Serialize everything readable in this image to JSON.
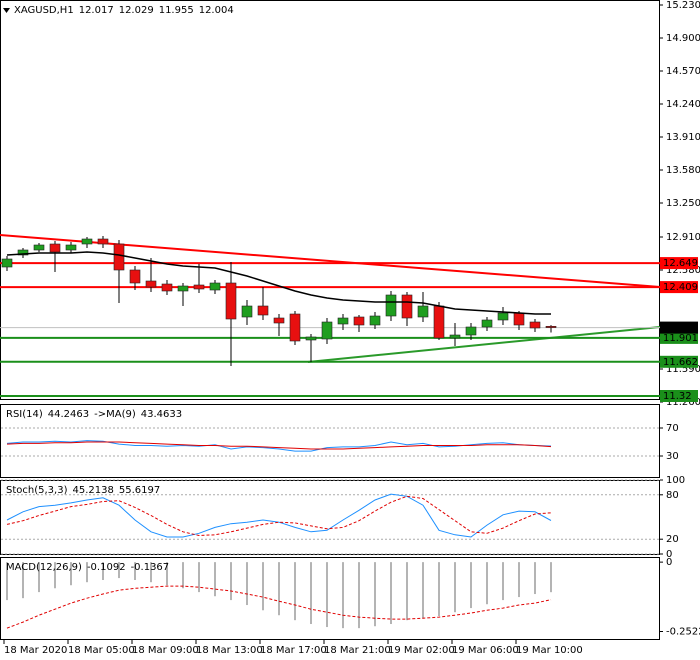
{
  "chart_data": [
    {
      "type": "candlestick",
      "title": "XAGUSD,H1",
      "categories": [
        "18 Mar 2020",
        null,
        null,
        null,
        "18 Mar 05:00",
        null,
        null,
        null,
        "18 Mar 09:00",
        null,
        null,
        null,
        "18 Mar 13:00",
        null,
        null,
        null,
        "18 Mar 17:00",
        null,
        null,
        null,
        "18 Mar 21:00",
        null,
        null,
        null,
        "19 Mar 02:00",
        null,
        null,
        null,
        "19 Mar 06:00",
        null,
        null,
        null,
        "19 Mar 10:00",
        null,
        null
      ],
      "open": [
        12.61,
        12.73,
        12.78,
        12.84,
        12.78,
        12.84,
        12.89,
        12.84,
        12.58,
        12.47,
        12.44,
        12.37,
        12.43,
        12.38,
        12.45,
        12.11,
        12.22,
        12.1,
        12.14,
        11.88,
        11.89,
        12.04,
        12.11,
        12.03,
        12.12,
        12.33,
        12.11,
        12.22,
        11.9,
        11.93,
        12.01,
        12.08,
        12.15,
        12.06,
        12.017
      ],
      "high": [
        12.72,
        12.8,
        12.85,
        12.87,
        12.86,
        12.91,
        12.92,
        12.88,
        12.62,
        12.7,
        12.48,
        12.45,
        12.64,
        12.48,
        12.66,
        12.28,
        12.41,
        12.14,
        12.17,
        11.94,
        12.1,
        12.14,
        12.13,
        12.16,
        12.37,
        12.36,
        12.36,
        12.26,
        12.05,
        12.05,
        12.11,
        12.21,
        12.17,
        12.09,
        12.029
      ],
      "low": [
        12.57,
        12.7,
        12.76,
        12.56,
        12.75,
        12.8,
        12.8,
        12.25,
        12.38,
        12.36,
        12.33,
        12.22,
        12.35,
        12.34,
        11.62,
        12.03,
        12.08,
        11.92,
        11.83,
        11.66,
        11.84,
        11.98,
        11.96,
        11.99,
        12.07,
        12.02,
        12.06,
        11.88,
        11.82,
        11.88,
        11.97,
        12.03,
        11.98,
        11.96,
        11.955
      ],
      "close": [
        12.69,
        12.78,
        12.83,
        12.76,
        12.83,
        12.89,
        12.84,
        12.58,
        12.45,
        12.41,
        12.37,
        12.42,
        12.39,
        12.45,
        12.09,
        12.22,
        12.13,
        12.05,
        11.87,
        11.91,
        12.06,
        12.1,
        12.03,
        12.12,
        12.33,
        12.1,
        12.22,
        11.9,
        11.93,
        12.01,
        12.08,
        12.15,
        12.03,
        12.0,
        12.004
      ],
      "up_color": "#1f9e1f",
      "down_color": "#e81010",
      "ma": {
        "color": "#000000",
        "values": [
          12.73,
          12.74,
          12.75,
          12.75,
          12.75,
          12.76,
          12.75,
          12.73,
          12.7,
          12.67,
          12.64,
          12.62,
          12.61,
          12.6,
          12.56,
          12.52,
          12.47,
          12.42,
          12.37,
          12.33,
          12.3,
          12.28,
          12.27,
          12.26,
          12.26,
          12.26,
          12.25,
          12.22,
          12.19,
          12.18,
          12.17,
          12.16,
          12.15,
          12.14,
          12.14
        ]
      },
      "levels": [
        {
          "value": 12.649,
          "color": "#ff0000"
        },
        {
          "value": 12.409,
          "color": "#ff0000"
        },
        {
          "value": 11.901,
          "color": "#1a8f1a"
        },
        {
          "value": 11.662,
          "color": "#1a8f1a"
        },
        {
          "value": 11.32,
          "color": "#1a8f1a"
        }
      ],
      "trendlines": [
        {
          "color": "#ff0000",
          "x": [
            -0.44,
            40.81
          ],
          "values": [
            12.93,
            12.41
          ]
        },
        {
          "color": "#2a9a2a",
          "x": [
            18.81,
            40.81
          ],
          "values": [
            11.66,
            12.01
          ]
        }
      ],
      "ylim": [
        11.28,
        15.28
      ],
      "yticks": [
        {
          "value": 15.23,
          "label": "15.230"
        },
        {
          "value": 14.9,
          "label": "14.900"
        },
        {
          "value": 14.57,
          "label": "14.570"
        },
        {
          "value": 14.24,
          "label": "14.240"
        },
        {
          "value": 13.91,
          "label": "13.910"
        },
        {
          "value": 13.58,
          "label": "13.580"
        },
        {
          "value": 13.25,
          "label": "13.250"
        },
        {
          "value": 12.91,
          "label": "12.910"
        },
        {
          "value": 12.58,
          "label": "12.580"
        },
        {
          "value": 11.59,
          "label": "11.590"
        },
        {
          "value": 11.26,
          "label": "11.260"
        }
      ],
      "grid": false
    },
    {
      "type": "line",
      "series": [
        {
          "name": "RSI(14)",
          "color": "#1e90ff",
          "values": [
            48,
            50,
            50,
            51,
            50,
            52,
            51,
            47,
            45,
            45,
            44,
            45,
            44,
            46,
            40,
            43,
            42,
            40,
            37,
            37,
            42,
            43,
            43,
            45,
            50,
            46,
            48,
            43,
            44,
            46,
            48,
            49,
            46,
            45,
            44.2463
          ]
        },
        {
          "name": "->MA(9)",
          "color": "#e00000",
          "values": [
            47,
            48,
            48,
            49,
            49,
            50,
            50,
            50,
            49,
            48,
            47,
            46,
            45,
            45,
            44,
            44,
            43,
            42,
            41,
            40,
            40,
            40,
            41,
            42,
            43,
            44,
            45,
            45,
            45,
            45,
            46,
            46,
            46,
            45,
            43.4633
          ]
        }
      ],
      "ylim": [
        0,
        100
      ],
      "yticks": [
        70,
        30
      ],
      "grid": true
    },
    {
      "type": "line",
      "title": "Stoch(5,3,3)",
      "series": [
        {
          "color": "#1e90ff",
          "values": [
            46,
            57,
            64,
            66,
            69,
            73,
            76,
            66,
            46,
            30,
            23,
            23,
            28,
            36,
            41,
            43,
            46,
            43,
            36,
            30,
            32,
            46,
            59,
            73,
            81,
            78,
            66,
            32,
            26,
            23,
            39,
            53,
            58,
            57,
            45.2138
          ]
        },
        {
          "color": "#e00000",
          "dash": true,
          "values": [
            40,
            45,
            52,
            58,
            64,
            67,
            71,
            72,
            63,
            52,
            40,
            30,
            25,
            26,
            30,
            35,
            40,
            43,
            42,
            38,
            34,
            36,
            45,
            58,
            70,
            78,
            75,
            60,
            45,
            30,
            28,
            35,
            45,
            54,
            55.6197
          ]
        }
      ],
      "ylim": [
        0,
        100
      ],
      "yticks": [
        100,
        80,
        20,
        0
      ],
      "grid": true
    },
    {
      "type": "bar",
      "title": "MACD(12,26,9)",
      "series": [
        {
          "type": "bar",
          "color": "#b4b4b4",
          "values": [
            -0.138,
            -0.131,
            -0.109,
            -0.095,
            -0.084,
            -0.073,
            -0.065,
            -0.058,
            -0.065,
            -0.073,
            -0.084,
            -0.095,
            -0.109,
            -0.124,
            -0.138,
            -0.156,
            -0.175,
            -0.193,
            -0.211,
            -0.225,
            -0.236,
            -0.24,
            -0.24,
            -0.233,
            -0.225,
            -0.211,
            -0.204,
            -0.196,
            -0.182,
            -0.167,
            -0.153,
            -0.138,
            -0.127,
            -0.116,
            -0.1092
          ]
        },
        {
          "type": "line",
          "color": "#e00000",
          "dash": true,
          "values": [
            -0.24,
            -0.218,
            -0.193,
            -0.171,
            -0.149,
            -0.131,
            -0.116,
            -0.102,
            -0.095,
            -0.091,
            -0.087,
            -0.087,
            -0.091,
            -0.098,
            -0.105,
            -0.116,
            -0.127,
            -0.142,
            -0.156,
            -0.171,
            -0.182,
            -0.193,
            -0.2,
            -0.204,
            -0.207,
            -0.207,
            -0.204,
            -0.2,
            -0.193,
            -0.185,
            -0.175,
            -0.167,
            -0.156,
            -0.149,
            -0.1367
          ]
        }
      ],
      "ylim": [
        -0.27,
        0.015
      ],
      "yticks": [
        0,
        -0.2522
      ],
      "grid": false
    }
  ]
}
